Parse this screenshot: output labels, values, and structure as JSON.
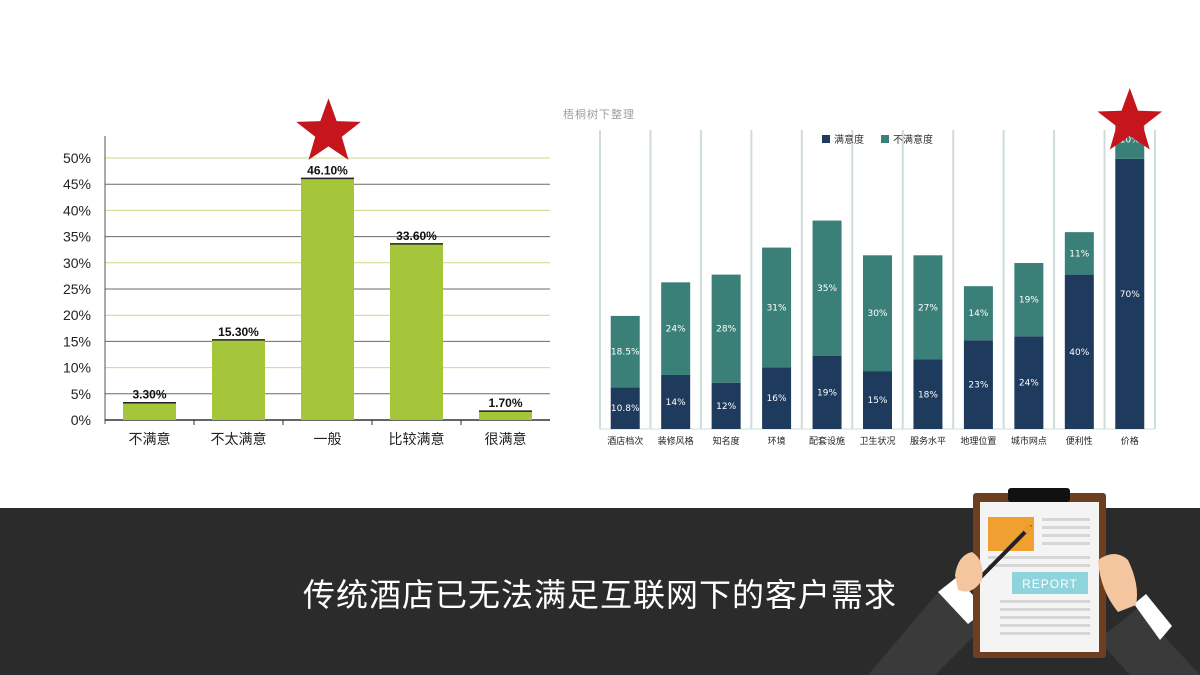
{
  "watermark": "梧桐树下整理",
  "caption": "传统酒店已无法满足互联网下的客户需求",
  "report_label": "REPORT",
  "colors": {
    "green_bar": "#a5c53a",
    "navy": "#1e3a5c",
    "teal": "#3a8078",
    "star": "#c4161c",
    "dark_bar": "#2b2b2b"
  },
  "chart_data": [
    {
      "type": "bar",
      "categories": [
        "不满意",
        "不太满意",
        "一般",
        "比较满意",
        "很满意"
      ],
      "values": [
        3.3,
        15.3,
        46.1,
        33.6,
        1.7
      ],
      "value_labels": [
        "3.30%",
        "15.30%",
        "46.10%",
        "33.60%",
        "1.70%"
      ],
      "yticks": [
        "0%",
        "5%",
        "10%",
        "15%",
        "20%",
        "25%",
        "30%",
        "35%",
        "40%",
        "45%",
        "50%"
      ],
      "ylim": [
        0,
        50
      ],
      "grid": true,
      "highlight": "一般"
    },
    {
      "type": "bar",
      "stacked": true,
      "categories": [
        "酒店档次",
        "装修风格",
        "知名度",
        "环境",
        "配套设施",
        "卫生状况",
        "服务水平",
        "地理位置",
        "城市网点",
        "便利性",
        "价格"
      ],
      "series": [
        {
          "name": "满意度",
          "values": [
            10.8,
            14,
            12,
            16,
            19,
            15,
            18,
            23,
            24,
            40,
            70
          ],
          "labels": [
            "10.8%",
            "14%",
            "12%",
            "16%",
            "19%",
            "15%",
            "18%",
            "23%",
            "24%",
            "40%",
            "70%"
          ]
        },
        {
          "name": "不满意度",
          "values": [
            18.5,
            24,
            28,
            31,
            35,
            30,
            27,
            14,
            19,
            11,
            10
          ],
          "labels": [
            "18.5%",
            "24%",
            "28%",
            "31%",
            "35%",
            "30%",
            "27%",
            "14%",
            "19%",
            "11%",
            "10%"
          ]
        }
      ],
      "legend": "top",
      "highlight": "价格"
    }
  ]
}
